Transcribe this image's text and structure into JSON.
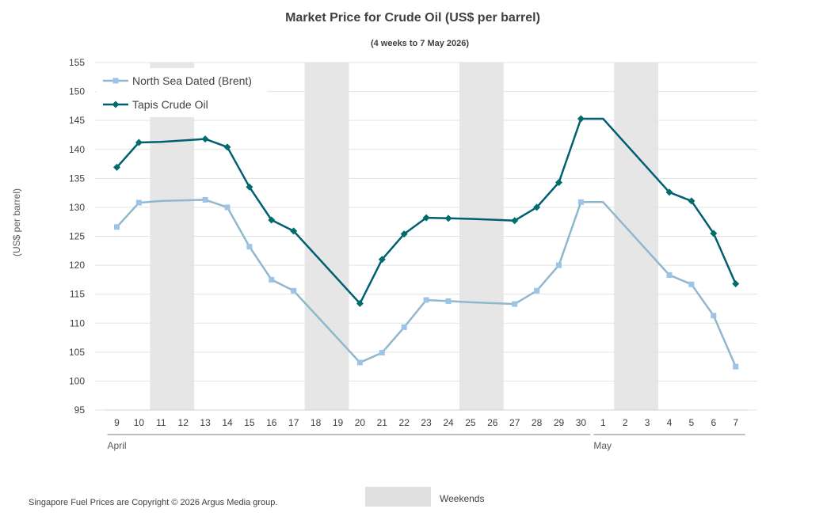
{
  "chart_data": {
    "type": "line",
    "title": "Market Price for Crude Oil (US$ per barrel)",
    "subtitle": "(4 weeks to 7 May 2026)",
    "ylabel": "(US$ per barrel)",
    "ylim": [
      95,
      155
    ],
    "y_ticks": [
      95,
      100,
      105,
      110,
      115,
      120,
      125,
      130,
      135,
      140,
      145,
      150,
      155
    ],
    "grid": true,
    "x": [
      "9",
      "10",
      "11",
      "12",
      "13",
      "14",
      "15",
      "16",
      "17",
      "18",
      "19",
      "20",
      "21",
      "22",
      "23",
      "24",
      "25",
      "26",
      "27",
      "28",
      "29",
      "30",
      "1",
      "2",
      "3",
      "4",
      "5",
      "6",
      "7"
    ],
    "months": [
      {
        "label": "April",
        "from": 0,
        "to": 21
      },
      {
        "label": "May",
        "from": 22,
        "to": 28
      }
    ],
    "weekends": [
      [
        2,
        3
      ],
      [
        9,
        10
      ],
      [
        16,
        17
      ],
      [
        23,
        24
      ]
    ],
    "series": [
      {
        "name": "North Sea Dated (Brent)",
        "color": "#8fb8cc",
        "marker_color": "#9dc3e6",
        "marker": "square",
        "values": [
          126.6,
          130.8,
          null,
          null,
          131.3,
          130.0,
          123.2,
          117.5,
          115.6,
          null,
          null,
          103.2,
          104.9,
          109.3,
          114.0,
          113.8,
          null,
          null,
          113.3,
          115.6,
          120.0,
          130.9,
          null,
          null,
          null,
          118.3,
          116.7,
          111.3,
          102.5
        ],
        "line_points": [
          [
            0,
            126.6
          ],
          [
            1,
            130.8
          ],
          [
            2,
            131.1
          ],
          [
            4,
            131.3
          ],
          [
            5,
            130.0
          ],
          [
            6,
            123.2
          ],
          [
            7,
            117.5
          ],
          [
            8,
            115.6
          ],
          [
            11,
            103.2
          ],
          [
            12,
            104.9
          ],
          [
            13,
            109.3
          ],
          [
            14,
            114.0
          ],
          [
            15,
            113.8
          ],
          [
            16,
            113.6
          ],
          [
            18,
            113.3
          ],
          [
            19,
            115.6
          ],
          [
            20,
            120.0
          ],
          [
            21,
            130.9
          ],
          [
            22,
            130.9
          ],
          [
            25,
            118.3
          ],
          [
            26,
            116.7
          ],
          [
            27,
            111.3
          ],
          [
            28,
            102.5
          ]
        ]
      },
      {
        "name": "Tapis Crude Oil",
        "color": "#005f73",
        "marker_color": "#006d6a",
        "marker": "diamond",
        "values": [
          136.9,
          141.2,
          null,
          null,
          141.8,
          140.4,
          133.5,
          127.8,
          125.9,
          null,
          null,
          113.4,
          121.0,
          125.4,
          128.2,
          128.1,
          null,
          null,
          127.7,
          130.0,
          134.3,
          145.3,
          null,
          null,
          null,
          132.6,
          131.1,
          125.5,
          116.8
        ],
        "line_points": [
          [
            0,
            136.9
          ],
          [
            1,
            141.2
          ],
          [
            2,
            141.3
          ],
          [
            4,
            141.8
          ],
          [
            5,
            140.4
          ],
          [
            6,
            133.5
          ],
          [
            7,
            127.8
          ],
          [
            8,
            125.9
          ],
          [
            11,
            113.4
          ],
          [
            12,
            121.0
          ],
          [
            13,
            125.4
          ],
          [
            14,
            128.2
          ],
          [
            15,
            128.1
          ],
          [
            16,
            128.0
          ],
          [
            18,
            127.7
          ],
          [
            19,
            130.0
          ],
          [
            20,
            134.3
          ],
          [
            21,
            145.3
          ],
          [
            22,
            145.3
          ],
          [
            25,
            132.6
          ],
          [
            26,
            131.1
          ],
          [
            27,
            125.5
          ],
          [
            28,
            116.8
          ]
        ]
      }
    ],
    "weekend_color": "#e6e6e6",
    "weekends_label": "Weekends"
  },
  "footer": {
    "copyright": "Singapore Fuel Prices are Copyright © 2026 Argus Media group."
  }
}
